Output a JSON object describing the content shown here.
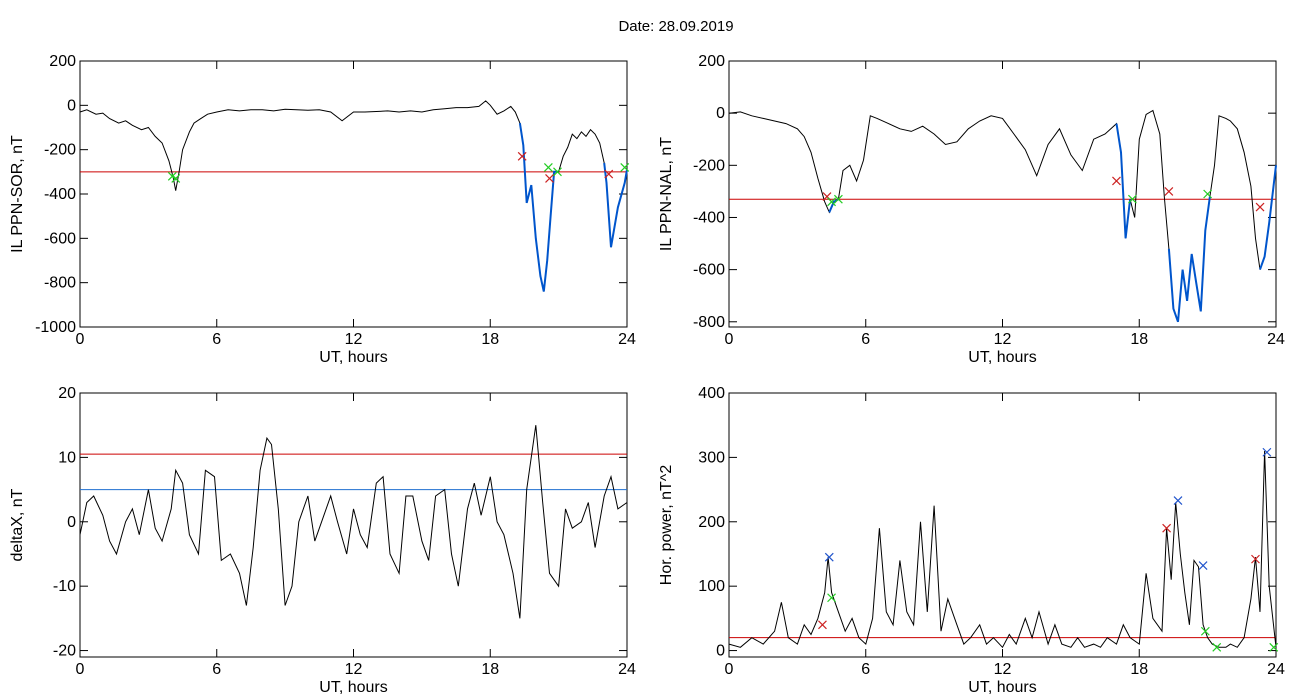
{
  "header": {
    "date_label": "Date:",
    "date_value": "28.09.2019"
  },
  "colors": {
    "trace": "#000000",
    "threshold": "#cc0000",
    "event_trace": "#0055cc",
    "blue_line": "#1f6fd0",
    "green_mark": "#22cc22",
    "red_mark": "#cc2222",
    "blue_mark": "#2255cc"
  },
  "chart_data": [
    {
      "id": "sor",
      "type": "line",
      "ylabel": "IL PPN-SOR, nT",
      "xlabel": "UT, hours",
      "xlim": [
        0,
        24
      ],
      "ylim": [
        -1000,
        200
      ],
      "xticks": [
        0,
        6,
        12,
        18,
        24
      ],
      "yticks": [
        -1000,
        -800,
        -600,
        -400,
        -200,
        0,
        200
      ],
      "series": [
        {
          "x": [
            0,
            0.3,
            0.7,
            1,
            1.3,
            1.7,
            2,
            2.3,
            2.7,
            3,
            3.3,
            3.6,
            3.9,
            4,
            4.1,
            4.2,
            4.35,
            4.5,
            4.8,
            5,
            5.3,
            5.6,
            6,
            6.5,
            7,
            7.5,
            8,
            8.5,
            9,
            9.5,
            10,
            10.5,
            11,
            11.5,
            12,
            12.5,
            13,
            13.5,
            14,
            14.5,
            15,
            15.5,
            16,
            16.5,
            17,
            17.5,
            17.8,
            18,
            18.3,
            18.6,
            18.9,
            19.1,
            19.3,
            19.45,
            19.6,
            19.8,
            20,
            20.2,
            20.35,
            20.5,
            20.65,
            20.8,
            21,
            21.2,
            21.4,
            21.6,
            21.8,
            22,
            22.2,
            22.4,
            22.6,
            22.8,
            23,
            23.1,
            23.3,
            23.6,
            23.9,
            24
          ],
          "y": [
            -30,
            -20,
            -40,
            -35,
            -60,
            -80,
            -70,
            -90,
            -110,
            -100,
            -140,
            -170,
            -250,
            -290,
            -330,
            -385,
            -300,
            -200,
            -120,
            -80,
            -60,
            -40,
            -30,
            -20,
            -25,
            -20,
            -20,
            -25,
            -18,
            -20,
            -22,
            -20,
            -30,
            -70,
            -30,
            -30,
            -28,
            -25,
            -30,
            -25,
            -30,
            -20,
            -15,
            -10,
            -10,
            -5,
            20,
            0,
            -40,
            -25,
            -5,
            -30,
            -80,
            -180,
            -440,
            -360,
            -600,
            -770,
            -840,
            -700,
            -500,
            -300,
            -300,
            -230,
            -190,
            -130,
            -150,
            -120,
            -140,
            -110,
            -130,
            -170,
            -260,
            -350,
            -640,
            -460,
            -350,
            -290
          ]
        }
      ],
      "thresholds": [
        {
          "value": -300,
          "color": "red"
        }
      ],
      "event_segments": [
        [
          19.3,
          21.0
        ],
        [
          22.9,
          24
        ]
      ],
      "markers": [
        {
          "x": 19.4,
          "y": -230,
          "color": "red"
        },
        {
          "x": 20.6,
          "y": -330,
          "color": "red"
        },
        {
          "x": 23.2,
          "y": -310,
          "color": "red"
        },
        {
          "x": 4.05,
          "y": -320,
          "color": "green"
        },
        {
          "x": 4.2,
          "y": -330,
          "color": "green"
        },
        {
          "x": 20.55,
          "y": -280,
          "color": "green"
        },
        {
          "x": 20.95,
          "y": -300,
          "color": "green"
        },
        {
          "x": 23.9,
          "y": -280,
          "color": "green"
        }
      ]
    },
    {
      "id": "nal",
      "type": "line",
      "ylabel": "IL PPN-NAL, nT",
      "xlabel": "UT, hours",
      "xlim": [
        0,
        24
      ],
      "ylim": [
        -820,
        200
      ],
      "xticks": [
        0,
        6,
        12,
        18,
        24
      ],
      "yticks": [
        -800,
        -600,
        -400,
        -200,
        0,
        200
      ],
      "series": [
        {
          "x": [
            0,
            0.5,
            1,
            1.5,
            2,
            2.5,
            3,
            3.3,
            3.6,
            3.9,
            4.2,
            4.4,
            4.6,
            4.8,
            5,
            5.3,
            5.6,
            5.9,
            6.2,
            6.5,
            7,
            7.5,
            8,
            8.5,
            9,
            9.5,
            10,
            10.5,
            11,
            11.5,
            12,
            12.5,
            13,
            13.5,
            14,
            14.5,
            15,
            15.5,
            16,
            16.5,
            17,
            17.2,
            17.4,
            17.6,
            17.8,
            18,
            18.3,
            18.6,
            18.9,
            19.1,
            19.3,
            19.5,
            19.7,
            19.9,
            20.1,
            20.3,
            20.5,
            20.7,
            20.9,
            21.1,
            21.3,
            21.5,
            21.8,
            22,
            22.3,
            22.6,
            22.9,
            23.1,
            23.3,
            23.5,
            23.7,
            24
          ],
          "y": [
            0,
            5,
            -10,
            -20,
            -30,
            -40,
            -60,
            -90,
            -150,
            -250,
            -340,
            -380,
            -340,
            -330,
            -220,
            -200,
            -260,
            -180,
            -10,
            -20,
            -40,
            -60,
            -70,
            -50,
            -80,
            -120,
            -110,
            -60,
            -30,
            -10,
            -20,
            -80,
            -140,
            -240,
            -120,
            -60,
            -160,
            -220,
            -100,
            -80,
            -40,
            -150,
            -480,
            -330,
            -400,
            -100,
            -5,
            10,
            -80,
            -320,
            -520,
            -750,
            -800,
            -600,
            -720,
            -540,
            -650,
            -760,
            -450,
            -320,
            -200,
            -10,
            -20,
            -30,
            -60,
            -150,
            -280,
            -480,
            -600,
            -550,
            -420,
            -200
          ]
        }
      ],
      "thresholds": [
        {
          "value": -330,
          "color": "red"
        }
      ],
      "event_segments": [
        [
          4.4,
          4.9
        ],
        [
          17.0,
          17.6
        ],
        [
          19.2,
          21.1
        ],
        [
          23.2,
          24
        ]
      ],
      "markers": [
        {
          "x": 4.3,
          "y": -320,
          "color": "red"
        },
        {
          "x": 17.0,
          "y": -260,
          "color": "red"
        },
        {
          "x": 19.3,
          "y": -300,
          "color": "red"
        },
        {
          "x": 23.3,
          "y": -360,
          "color": "red"
        },
        {
          "x": 4.5,
          "y": -340,
          "color": "green"
        },
        {
          "x": 4.8,
          "y": -330,
          "color": "green"
        },
        {
          "x": 17.7,
          "y": -330,
          "color": "green"
        },
        {
          "x": 21.0,
          "y": -310,
          "color": "green"
        }
      ]
    },
    {
      "id": "deltax",
      "type": "line",
      "ylabel": "deltaX, nT",
      "xlabel": "UT, hours",
      "xlim": [
        0,
        24
      ],
      "ylim": [
        -21,
        20
      ],
      "xticks": [
        0,
        6,
        12,
        18,
        24
      ],
      "yticks": [
        -20,
        -10,
        0,
        10,
        20
      ],
      "series": [
        {
          "x": [
            0,
            0.3,
            0.6,
            1,
            1.3,
            1.6,
            2,
            2.3,
            2.6,
            3,
            3.3,
            3.6,
            4,
            4.2,
            4.5,
            4.8,
            5.2,
            5.5,
            5.9,
            6.2,
            6.6,
            7,
            7.3,
            7.6,
            7.9,
            8.2,
            8.4,
            8.7,
            9,
            9.3,
            9.6,
            10,
            10.3,
            10.6,
            11,
            11.3,
            11.7,
            12,
            12.3,
            12.6,
            13,
            13.3,
            13.6,
            14,
            14.3,
            14.6,
            15,
            15.3,
            15.6,
            16,
            16.3,
            16.6,
            17,
            17.3,
            17.6,
            18,
            18.3,
            18.6,
            19,
            19.3,
            19.6,
            20,
            20.3,
            20.6,
            21,
            21.3,
            21.6,
            22,
            22.3,
            22.6,
            23,
            23.3,
            23.6,
            24
          ],
          "y": [
            -2,
            3,
            4,
            1,
            -3,
            -5,
            0,
            2,
            -2,
            5,
            -1,
            -3,
            2,
            8,
            6,
            -2,
            -5,
            8,
            7,
            -6,
            -5,
            -8,
            -13,
            -4,
            8,
            13,
            12,
            2,
            -13,
            -10,
            0,
            4,
            -3,
            0,
            4,
            0,
            -5,
            2,
            -2,
            -4,
            6,
            7,
            -5,
            -8,
            4,
            4,
            -3,
            -6,
            4,
            5,
            -5,
            -10,
            2,
            6,
            1,
            7,
            0,
            -2,
            -8,
            -15,
            5,
            15,
            3,
            -8,
            -10,
            2,
            -1,
            0,
            3,
            -4,
            4,
            7,
            2,
            3
          ]
        }
      ],
      "thresholds": [
        {
          "value": 10.5,
          "color": "red"
        },
        {
          "value": 5,
          "color": "blue"
        }
      ],
      "event_segments": [],
      "markers": []
    },
    {
      "id": "power",
      "type": "line",
      "ylabel": "Hor. power, nT^2",
      "xlabel": "UT, hours",
      "xlim": [
        0,
        24
      ],
      "ylim": [
        -10,
        400
      ],
      "xticks": [
        0,
        6,
        12,
        18,
        24
      ],
      "yticks": [
        0,
        100,
        200,
        300,
        400
      ],
      "series": [
        {
          "x": [
            0,
            0.5,
            1,
            1.5,
            2,
            2.3,
            2.6,
            3,
            3.3,
            3.6,
            3.9,
            4.2,
            4.35,
            4.5,
            4.8,
            5.1,
            5.4,
            5.7,
            6,
            6.3,
            6.6,
            6.9,
            7.2,
            7.5,
            7.8,
            8.1,
            8.4,
            8.7,
            9,
            9.3,
            9.6,
            10,
            10.3,
            10.6,
            11,
            11.3,
            11.6,
            12,
            12.3,
            12.6,
            13,
            13.3,
            13.6,
            14,
            14.3,
            14.6,
            15,
            15.3,
            15.6,
            16,
            16.3,
            16.6,
            17,
            17.3,
            17.6,
            18,
            18.3,
            18.6,
            19,
            19.2,
            19.4,
            19.6,
            19.8,
            20,
            20.2,
            20.4,
            20.6,
            20.8,
            21,
            21.2,
            21.5,
            21.8,
            22,
            22.3,
            22.6,
            22.9,
            23.1,
            23.3,
            23.5,
            23.7,
            24
          ],
          "y": [
            10,
            5,
            20,
            10,
            30,
            75,
            20,
            10,
            40,
            25,
            50,
            90,
            145,
            90,
            60,
            30,
            50,
            20,
            10,
            50,
            190,
            60,
            40,
            140,
            60,
            40,
            200,
            60,
            225,
            30,
            80,
            40,
            10,
            20,
            40,
            10,
            20,
            5,
            25,
            10,
            50,
            20,
            60,
            10,
            40,
            10,
            5,
            20,
            5,
            10,
            5,
            20,
            10,
            40,
            20,
            10,
            120,
            50,
            30,
            190,
            110,
            230,
            150,
            90,
            40,
            140,
            130,
            40,
            20,
            10,
            5,
            5,
            10,
            5,
            20,
            80,
            145,
            60,
            310,
            100,
            5
          ]
        }
      ],
      "thresholds": [
        {
          "value": 20,
          "color": "red"
        }
      ],
      "event_segments": [],
      "markers": [
        {
          "x": 4.4,
          "y": 145,
          "color": "blue"
        },
        {
          "x": 19.7,
          "y": 233,
          "color": "blue"
        },
        {
          "x": 20.8,
          "y": 132,
          "color": "blue"
        },
        {
          "x": 23.6,
          "y": 308,
          "color": "blue"
        },
        {
          "x": 4.1,
          "y": 40,
          "color": "red"
        },
        {
          "x": 19.2,
          "y": 190,
          "color": "red"
        },
        {
          "x": 23.1,
          "y": 142,
          "color": "red"
        },
        {
          "x": 4.5,
          "y": 82,
          "color": "green"
        },
        {
          "x": 20.9,
          "y": 30,
          "color": "green"
        },
        {
          "x": 21.4,
          "y": 5,
          "color": "green"
        },
        {
          "x": 23.9,
          "y": 5,
          "color": "green"
        }
      ]
    }
  ]
}
